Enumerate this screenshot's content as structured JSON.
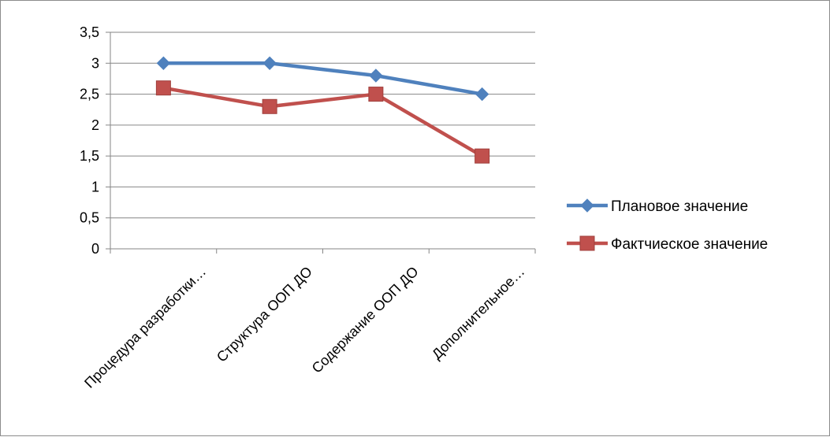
{
  "chart_data": {
    "type": "line",
    "title": "",
    "xlabel": "",
    "ylabel": "",
    "categories": [
      "Процедура разработки…",
      "Структура ООП ДО",
      "Содержание ООП ДО",
      "Дополнительное…"
    ],
    "ylim": [
      0,
      3.5
    ],
    "yticks": [
      "0",
      "0,5",
      "1",
      "1,5",
      "2",
      "2,5",
      "3",
      "3,5"
    ],
    "grid": true,
    "legend_position": "right",
    "series": [
      {
        "name": "Плановое значение",
        "values": [
          3,
          3,
          2.8,
          2.5
        ],
        "color": "#4F81BD",
        "marker": "diamond"
      },
      {
        "name": "Фактчиеское значение",
        "values": [
          2.6,
          2.3,
          2.5,
          1.5
        ],
        "color": "#C0504D",
        "marker": "square"
      }
    ]
  }
}
